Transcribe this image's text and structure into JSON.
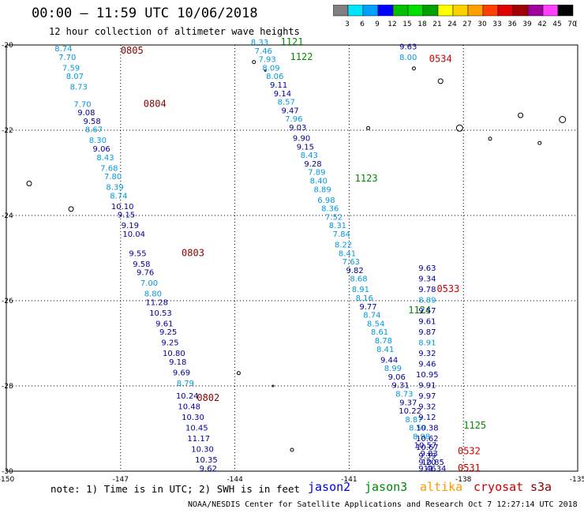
{
  "header": {
    "title": "00:00 – 11:59 UTC 10/06/2018",
    "subtitle": "12 hour collection of altimeter wave heights"
  },
  "colorbar": {
    "unit": "(ft)",
    "segments": [
      {
        "color": "#808080",
        "label": "3"
      },
      {
        "color": "#00e5ff",
        "label": "6"
      },
      {
        "color": "#00a0ff",
        "label": "9"
      },
      {
        "color": "#0000ff",
        "label": "12"
      },
      {
        "color": "#00c000",
        "label": "15"
      },
      {
        "color": "#00e000",
        "label": "18"
      },
      {
        "color": "#00a000",
        "label": "21"
      },
      {
        "color": "#ffff00",
        "label": "24"
      },
      {
        "color": "#ffd000",
        "label": "27"
      },
      {
        "color": "#ffa000",
        "label": "30"
      },
      {
        "color": "#ff4000",
        "label": "33"
      },
      {
        "color": "#e00000",
        "label": "36"
      },
      {
        "color": "#a00000",
        "label": "39"
      },
      {
        "color": "#a000a0",
        "label": "42"
      },
      {
        "color": "#ff40ff",
        "label": "45"
      },
      {
        "color": "#000000",
        "label": "70"
      }
    ]
  },
  "map": {
    "lon_range": [
      -150,
      -135
    ],
    "lat_range": [
      -30,
      -20
    ],
    "lon_ticks": [
      -150,
      -147,
      -144,
      -141,
      -138,
      -135
    ],
    "lon_labels": [
      "-150",
      "-147",
      "-144",
      "-141",
      "-138",
      "-135"
    ],
    "lat_ticks": [
      -20,
      -22,
      -24,
      -26,
      -28,
      -30
    ],
    "lat_labels": [
      "-20",
      "-22",
      "-24",
      "-26",
      "-28",
      "-30"
    ],
    "grid": true,
    "colors": {
      "light": "#0099dd",
      "dark": "#000099",
      "jason2": "#0000dd",
      "jason3": "#008800",
      "altika": "#ff9900",
      "cryosat": "#cc0000",
      "s3a": "#880000"
    },
    "tracks": [
      {
        "satellite": "s3a",
        "label_color": "#880000",
        "time_labels": [
          {
            "text": "0805",
            "lon": -146.7,
            "lat": -20.2
          },
          {
            "text": "0804",
            "lon": -146.1,
            "lat": -21.45
          },
          {
            "text": "0803",
            "lon": -145.1,
            "lat": -24.95
          },
          {
            "text": "0802",
            "lon": -144.7,
            "lat": -28.35
          }
        ],
        "points": [
          {
            "v": "8.74",
            "lon": -148.5,
            "lat": -20.15
          },
          {
            "v": "7.70",
            "lon": -148.4,
            "lat": -20.35
          },
          {
            "v": "7.59",
            "lon": -148.3,
            "lat": -20.6
          },
          {
            "v": "8.07",
            "lon": -148.2,
            "lat": -20.8
          },
          {
            "v": "8.73",
            "lon": -148.1,
            "lat": -21.05
          },
          {
            "v": "7.70",
            "lon": -148.0,
            "lat": -21.45
          },
          {
            "v": "9.08",
            "lon": -147.9,
            "lat": -21.65
          },
          {
            "v": "9.58",
            "lon": -147.75,
            "lat": -21.85
          },
          {
            "v": "8.67",
            "lon": -147.7,
            "lat": -22.05
          },
          {
            "v": "8.30",
            "lon": -147.6,
            "lat": -22.3
          },
          {
            "v": "9.06",
            "lon": -147.5,
            "lat": -22.5
          },
          {
            "v": "8.43",
            "lon": -147.4,
            "lat": -22.7
          },
          {
            "v": "7.68",
            "lon": -147.3,
            "lat": -22.95
          },
          {
            "v": "7.80",
            "lon": -147.2,
            "lat": -23.15
          },
          {
            "v": "8.39",
            "lon": -147.15,
            "lat": -23.4
          },
          {
            "v": "8.74",
            "lon": -147.05,
            "lat": -23.6
          },
          {
            "v": "10.10",
            "lon": -146.95,
            "lat": -23.85
          },
          {
            "v": "9.15",
            "lon": -146.85,
            "lat": -24.05
          },
          {
            "v": "9.19",
            "lon": -146.75,
            "lat": -24.3
          },
          {
            "v": "10.04",
            "lon": -146.65,
            "lat": -24.5
          },
          {
            "v": "9.55",
            "lon": -146.55,
            "lat": -24.95
          },
          {
            "v": "9.58",
            "lon": -146.45,
            "lat": -25.2
          },
          {
            "v": "9.76",
            "lon": -146.35,
            "lat": -25.4
          },
          {
            "v": "7.00",
            "lon": -146.25,
            "lat": -25.65
          },
          {
            "v": "8.80",
            "lon": -146.15,
            "lat": -25.9
          },
          {
            "v": "11.28",
            "lon": -146.05,
            "lat": -26.1
          },
          {
            "v": "10.53",
            "lon": -145.95,
            "lat": -26.35
          },
          {
            "v": "9.61",
            "lon": -145.85,
            "lat": -26.6
          },
          {
            "v": "9.25",
            "lon": -145.75,
            "lat": -26.8
          },
          {
            "v": "9.25",
            "lon": -145.7,
            "lat": -27.05
          },
          {
            "v": "10.80",
            "lon": -145.6,
            "lat": -27.3
          },
          {
            "v": "9.18",
            "lon": -145.5,
            "lat": -27.5
          },
          {
            "v": "9.69",
            "lon": -145.4,
            "lat": -27.75
          },
          {
            "v": "8.79",
            "lon": -145.3,
            "lat": -28.0
          },
          {
            "v": "10.24",
            "lon": -145.25,
            "lat": -28.3
          },
          {
            "v": "10.48",
            "lon": -145.2,
            "lat": -28.55
          },
          {
            "v": "10.30",
            "lon": -145.1,
            "lat": -28.8
          },
          {
            "v": "10.45",
            "lon": -145.0,
            "lat": -29.05
          },
          {
            "v": "11.17",
            "lon": -144.95,
            "lat": -29.3
          },
          {
            "v": "10.30",
            "lon": -144.85,
            "lat": -29.55
          },
          {
            "v": "10.35",
            "lon": -144.75,
            "lat": -29.8
          },
          {
            "v": "9.62",
            "lon": -144.7,
            "lat": -30.0
          }
        ]
      },
      {
        "satellite": "jason3",
        "label_color": "#008800",
        "time_labels": [
          {
            "text": "1121",
            "lon": -142.5,
            "lat": -20.0
          },
          {
            "text": "1122",
            "lon": -142.25,
            "lat": -20.35
          },
          {
            "text": "1123",
            "lon": -140.55,
            "lat": -23.2
          },
          {
            "text": "1124",
            "lon": -139.15,
            "lat": -26.3
          },
          {
            "text": "1125",
            "lon": -137.7,
            "lat": -29.0
          }
        ],
        "points": [
          {
            "v": "8.33",
            "lon": -143.35,
            "lat": -20.0
          },
          {
            "v": "7.46",
            "lon": -143.25,
            "lat": -20.2
          },
          {
            "v": "7.93",
            "lon": -143.15,
            "lat": -20.4
          },
          {
            "v": "8.09",
            "lon": -143.05,
            "lat": -20.6
          },
          {
            "v": "8.06",
            "lon": -142.95,
            "lat": -20.8
          },
          {
            "v": "9.11",
            "lon": -142.85,
            "lat": -21.0
          },
          {
            "v": "9.14",
            "lon": -142.75,
            "lat": -21.2
          },
          {
            "v": "8.57",
            "lon": -142.65,
            "lat": -21.4
          },
          {
            "v": "9.47",
            "lon": -142.55,
            "lat": -21.6
          },
          {
            "v": "7.96",
            "lon": -142.45,
            "lat": -21.8
          },
          {
            "v": "9.03",
            "lon": -142.35,
            "lat": -22.0
          },
          {
            "v": "9.90",
            "lon": -142.25,
            "lat": -22.25
          },
          {
            "v": "9.15",
            "lon": -142.15,
            "lat": -22.45
          },
          {
            "v": "8.43",
            "lon": -142.05,
            "lat": -22.65
          },
          {
            "v": "9.28",
            "lon": -141.95,
            "lat": -22.85
          },
          {
            "v": "7.89",
            "lon": -141.85,
            "lat": -23.05
          },
          {
            "v": "8.40",
            "lon": -141.8,
            "lat": -23.25
          },
          {
            "v": "8.89",
            "lon": -141.7,
            "lat": -23.45
          },
          {
            "v": "6.98",
            "lon": -141.6,
            "lat": -23.7
          },
          {
            "v": "8.36",
            "lon": -141.5,
            "lat": -23.9
          },
          {
            "v": "7.52",
            "lon": -141.4,
            "lat": -24.1
          },
          {
            "v": "8.31",
            "lon": -141.3,
            "lat": -24.3
          },
          {
            "v": "7.84",
            "lon": -141.2,
            "lat": -24.5
          },
          {
            "v": "8.22",
            "lon": -141.15,
            "lat": -24.75
          },
          {
            "v": "8.41",
            "lon": -141.05,
            "lat": -24.95
          },
          {
            "v": "7.63",
            "lon": -140.95,
            "lat": -25.15
          },
          {
            "v": "9.82",
            "lon": -140.85,
            "lat": -25.35
          },
          {
            "v": "8.68",
            "lon": -140.75,
            "lat": -25.55
          },
          {
            "v": "8.91",
            "lon": -140.7,
            "lat": -25.8
          },
          {
            "v": "8.16",
            "lon": -140.6,
            "lat": -26.0
          },
          {
            "v": "9.77",
            "lon": -140.5,
            "lat": -26.2
          },
          {
            "v": "8.74",
            "lon": -140.4,
            "lat": -26.4
          },
          {
            "v": "8.54",
            "lon": -140.3,
            "lat": -26.6
          },
          {
            "v": "8.61",
            "lon": -140.2,
            "lat": -26.8
          },
          {
            "v": "8.78",
            "lon": -140.1,
            "lat": -27.0
          },
          {
            "v": "8.41",
            "lon": -140.05,
            "lat": -27.2
          },
          {
            "v": "9.44",
            "lon": -139.95,
            "lat": -27.45
          },
          {
            "v": "8.99",
            "lon": -139.85,
            "lat": -27.65
          },
          {
            "v": "9.06",
            "lon": -139.75,
            "lat": -27.85
          },
          {
            "v": "9.31",
            "lon": -139.65,
            "lat": -28.05
          },
          {
            "v": "8.73",
            "lon": -139.55,
            "lat": -28.25
          },
          {
            "v": "9.37",
            "lon": -139.45,
            "lat": -28.45
          },
          {
            "v": "10.22",
            "lon": -139.4,
            "lat": -28.65
          },
          {
            "v": "8.87",
            "lon": -139.3,
            "lat": -28.85
          },
          {
            "v": "8.59",
            "lon": -139.2,
            "lat": -29.05
          },
          {
            "v": "8.98",
            "lon": -139.1,
            "lat": -29.25
          },
          {
            "v": "10.57",
            "lon": -139.0,
            "lat": -29.45
          },
          {
            "v": "9.83",
            "lon": -138.9,
            "lat": -29.65
          },
          {
            "v": "10.85",
            "lon": -138.8,
            "lat": -29.85
          },
          {
            "v": "11.34",
            "lon": -138.75,
            "lat": -30.0
          }
        ]
      },
      {
        "satellite": "cryosat",
        "label_color": "#cc0000",
        "time_labels": [
          {
            "text": "0534",
            "lon": -138.6,
            "lat": -20.4
          },
          {
            "text": "0533",
            "lon": -138.4,
            "lat": -25.8
          },
          {
            "text": "0532",
            "lon": -137.85,
            "lat": -29.6
          },
          {
            "text": "0531",
            "lon": -137.85,
            "lat": -30.0
          }
        ],
        "points": [
          {
            "v": "9.63",
            "lon": -139.45,
            "lat": -20.1
          },
          {
            "v": "8.00",
            "lon": -139.45,
            "lat": -20.35
          },
          {
            "v": "9.63",
            "lon": -138.95,
            "lat": -25.3
          },
          {
            "v": "9.34",
            "lon": -138.95,
            "lat": -25.55
          },
          {
            "v": "9.78",
            "lon": -138.95,
            "lat": -25.8
          },
          {
            "v": "8.89",
            "lon": -138.95,
            "lat": -26.05
          },
          {
            "v": "9.57",
            "lon": -138.95,
            "lat": -26.3
          },
          {
            "v": "9.61",
            "lon": -138.95,
            "lat": -26.55
          },
          {
            "v": "9.87",
            "lon": -138.95,
            "lat": -26.8
          },
          {
            "v": "8.91",
            "lon": -138.95,
            "lat": -27.05
          },
          {
            "v": "9.32",
            "lon": -138.95,
            "lat": -27.3
          },
          {
            "v": "9.46",
            "lon": -138.95,
            "lat": -27.55
          },
          {
            "v": "10.95",
            "lon": -138.95,
            "lat": -27.8
          },
          {
            "v": "9.91",
            "lon": -138.95,
            "lat": -28.05
          },
          {
            "v": "9.97",
            "lon": -138.95,
            "lat": -28.3
          },
          {
            "v": "9.32",
            "lon": -138.95,
            "lat": -28.55
          },
          {
            "v": "9.12",
            "lon": -138.95,
            "lat": -28.8
          },
          {
            "v": "10.38",
            "lon": -138.95,
            "lat": -29.05
          },
          {
            "v": "10.62",
            "lon": -138.95,
            "lat": -29.3
          },
          {
            "v": "10.67",
            "lon": -138.95,
            "lat": -29.5
          },
          {
            "v": "9.39",
            "lon": -138.95,
            "lat": -29.7
          },
          {
            "v": "9.20",
            "lon": -138.95,
            "lat": -29.85
          },
          {
            "v": "9.46",
            "lon": -138.95,
            "lat": -30.0
          }
        ]
      }
    ],
    "islands": [
      {
        "lon": -149.4,
        "lat": -23.25,
        "r": 3
      },
      {
        "lon": -148.3,
        "lat": -23.85,
        "r": 3
      },
      {
        "lon": -143.5,
        "lat": -20.4,
        "r": 2
      },
      {
        "lon": -143.2,
        "lat": -20.6,
        "r": 1
      },
      {
        "lon": -140.5,
        "lat": -21.95,
        "r": 2
      },
      {
        "lon": -139.3,
        "lat": -20.55,
        "r": 2
      },
      {
        "lon": -138.6,
        "lat": -20.85,
        "r": 3
      },
      {
        "lon": -138.1,
        "lat": -21.95,
        "r": 4
      },
      {
        "lon": -137.3,
        "lat": -22.2,
        "r": 2
      },
      {
        "lon": -136.5,
        "lat": -21.65,
        "r": 3
      },
      {
        "lon": -136.0,
        "lat": -22.3,
        "r": 2
      },
      {
        "lon": -135.4,
        "lat": -21.75,
        "r": 4
      },
      {
        "lon": -143.9,
        "lat": -27.7,
        "r": 2
      },
      {
        "lon": -143.0,
        "lat": -28.0,
        "r": 1
      },
      {
        "lon": -142.5,
        "lat": -29.5,
        "r": 2
      }
    ]
  },
  "legend": {
    "note": "note: 1) Time is in UTC; 2) SWH is in feet",
    "items": [
      {
        "name": "jason2",
        "color": "#0000dd"
      },
      {
        "name": "jason3",
        "color": "#008800"
      },
      {
        "name": "altika",
        "color": "#ff9900"
      },
      {
        "name": "cryosat",
        "color": "#cc0000"
      },
      {
        "name": "s3a",
        "color": "#880000"
      }
    ]
  },
  "footer": {
    "credit": "NOAA/NESDIS Center for Satellite Applications and Research   Oct  7 12:27:14 UTC 2018"
  }
}
